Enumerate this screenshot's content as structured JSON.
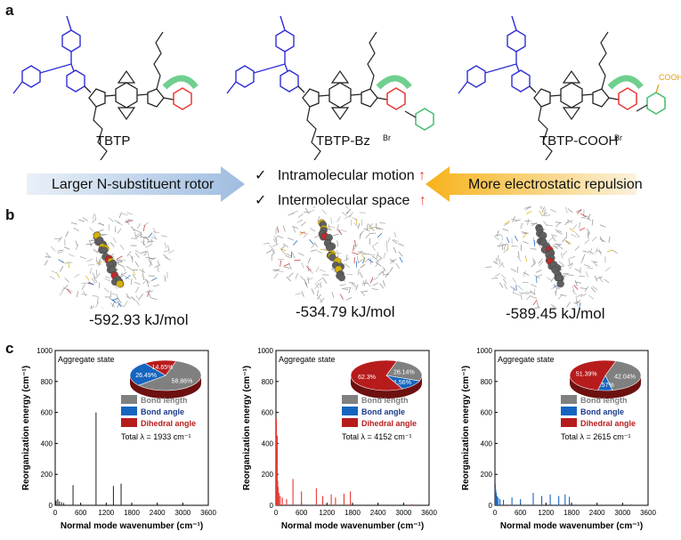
{
  "panel_labels": {
    "a": "a",
    "b": "b",
    "c": "c"
  },
  "molecules": [
    {
      "name": "TBTP",
      "counterion": ""
    },
    {
      "name": "TBTP-Bz",
      "counterion": "Br"
    },
    {
      "name": "TBTP-COOH",
      "counterion": "Br",
      "substituent": "COOH"
    }
  ],
  "arrows": {
    "left": "Larger N-substituent rotor",
    "right": "More electrostatic repulsion",
    "items": [
      {
        "check": "✓",
        "text": "Intramolecular motion",
        "trend": "↑"
      },
      {
        "check": "✓",
        "text": "Intermolecular space",
        "trend": "↑"
      }
    ]
  },
  "energies": [
    "-592.93 kJ/mol",
    "-534.79 kJ/mol",
    "-589.45 kJ/mol"
  ],
  "colors": {
    "bond_length": "#808080",
    "bond_angle": "#1565c0",
    "dihedral_angle": "#b71c1c",
    "blue_arrow": "#c5d9ef",
    "yellow_arrow": "#f7b21a",
    "triphenylamine": "#2f2fd6",
    "pyridine": "#e53935",
    "rotor": "#3fbf6a",
    "cooh": "#e39b16"
  },
  "chart_common": {
    "ylabel": "Reorganization energy (cm⁻¹)",
    "xlabel": "Normal mode wavenumber (cm⁻¹)",
    "state_label": "Aggregate state",
    "legend": [
      "Bond length",
      "Bond angle",
      "Dihedral angle"
    ],
    "xticks": [
      "0",
      "600",
      "1200",
      "1800",
      "2400",
      "3000",
      "3600"
    ],
    "yticks": [
      "0",
      "200",
      "400",
      "600",
      "800",
      "1000"
    ]
  },
  "chart_data": [
    {
      "type": "bar",
      "title": "",
      "xlim": [
        0,
        3600
      ],
      "ylim": [
        0,
        1000
      ],
      "color": "#333333",
      "total": "Total λ = 1933 cm⁻¹",
      "pie": [
        {
          "name": "Bond length",
          "value": 58.86,
          "label": "58.86%"
        },
        {
          "name": "Bond angle",
          "value": 26.49,
          "label": "26.49%"
        },
        {
          "name": "Dihedral angle",
          "value": 14.65,
          "label": "14.65%"
        }
      ],
      "x": [
        20,
        60,
        100,
        150,
        200,
        420,
        960,
        1370,
        1550
      ],
      "y": [
        30,
        40,
        25,
        20,
        15,
        130,
        600,
        125,
        140
      ]
    },
    {
      "type": "bar",
      "title": "",
      "xlim": [
        0,
        3600
      ],
      "ylim": [
        0,
        1000
      ],
      "color": "#e53935",
      "total": "Total λ = 4152 cm⁻¹",
      "pie": [
        {
          "name": "Bond length",
          "value": 26.14,
          "label": "26.14%"
        },
        {
          "name": "Bond angle",
          "value": 11.56,
          "label": "11.56%"
        },
        {
          "name": "Dihedral angle",
          "value": 62.3,
          "label": "62.3%"
        }
      ],
      "x": [
        10,
        20,
        30,
        40,
        50,
        70,
        100,
        150,
        250,
        400,
        600,
        950,
        1100,
        1300,
        1400,
        1600,
        1750,
        3200
      ],
      "y": [
        560,
        280,
        450,
        160,
        120,
        80,
        60,
        50,
        40,
        170,
        90,
        110,
        60,
        70,
        50,
        75,
        90,
        8
      ]
    },
    {
      "type": "bar",
      "title": "",
      "xlim": [
        0,
        3600
      ],
      "ylim": [
        0,
        1000
      ],
      "color": "#1565c0",
      "total": "Total λ = 2615 cm⁻¹",
      "pie": [
        {
          "name": "Bond length",
          "value": 42.04,
          "label": "42.04%"
        },
        {
          "name": "Bond angle",
          "value": 6.57,
          "label": "6.57%"
        },
        {
          "name": "Dihedral angle",
          "value": 51.39,
          "label": "51.39%"
        }
      ],
      "x": [
        10,
        20,
        30,
        50,
        80,
        120,
        200,
        400,
        600,
        900,
        1100,
        1300,
        1500,
        1650,
        1750,
        3200
      ],
      "y": [
        140,
        100,
        80,
        60,
        50,
        40,
        35,
        50,
        40,
        80,
        60,
        70,
        60,
        70,
        55,
        6
      ]
    }
  ]
}
